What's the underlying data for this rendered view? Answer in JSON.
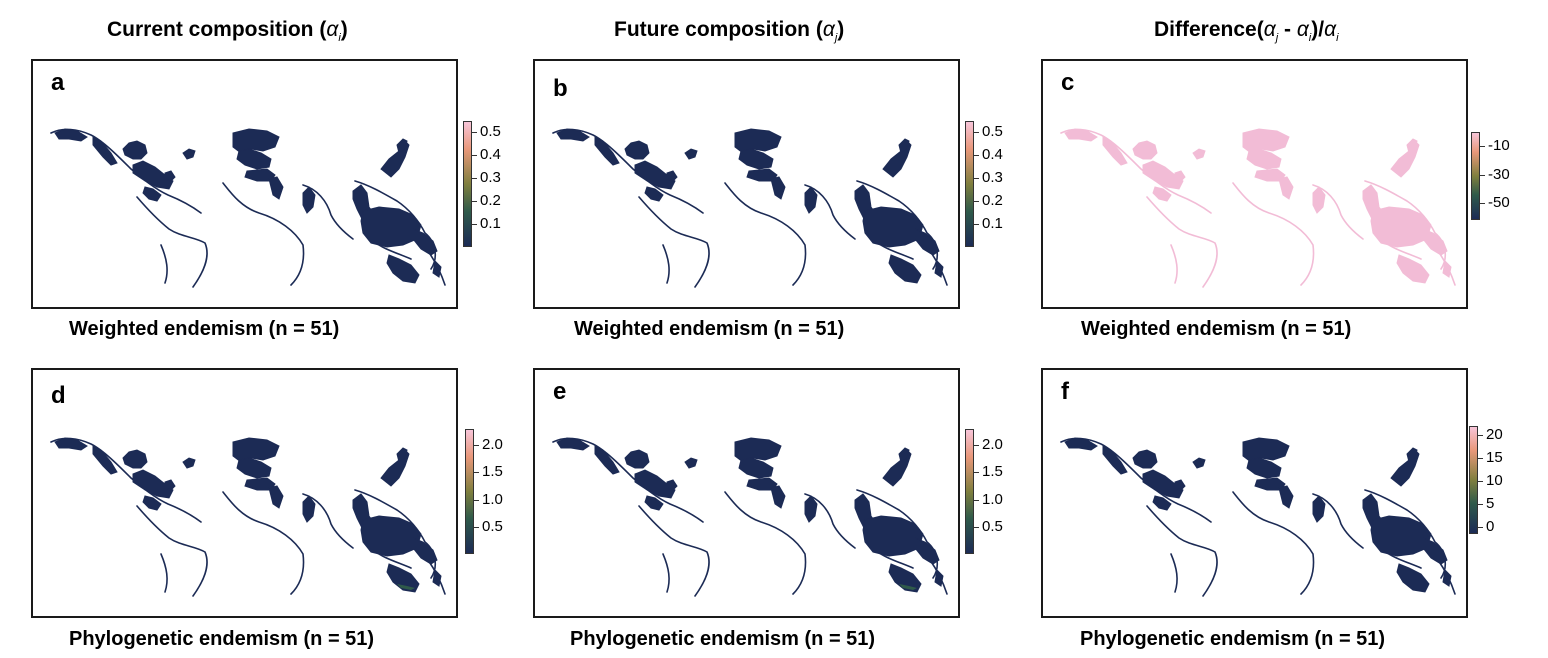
{
  "column_headers": [
    {
      "main": "Current composition (",
      "sym": "α",
      "sub": "i",
      "tail": ")"
    },
    {
      "main": "Future composition (",
      "sym": "α",
      "sub": "j",
      "tail": ")"
    },
    {
      "main": "Difference(",
      "sym": "α",
      "sub": "j",
      "mid": " - ",
      "sym2": "α",
      "sub2": "i",
      "tail": ")/",
      "sym3": "α",
      "sub3": "i"
    }
  ],
  "colors": {
    "ocean_range": "#1c2b55",
    "difference_pink": "#f2bcd6",
    "colorbar_top": "#f7c5d9",
    "colorbar_upper": "#e9987a",
    "colorbar_mid": "#7f7f3e",
    "colorbar_low": "#2f5a4a",
    "colorbar_bottom": "#1c2b55",
    "frame": "#1a1a1a"
  },
  "chart_data": [
    {
      "type": "heatmap",
      "panel": "a",
      "caption": "Weighted endemism (n = 51)",
      "range_color": "ocean_range",
      "legend": {
        "ticks": [
          "0.5",
          "0.4",
          "0.3",
          "0.2",
          "0.1"
        ],
        "values": [
          0.5,
          0.4,
          0.3,
          0.2,
          0.1
        ],
        "min": 0.0,
        "max": 0.55
      }
    },
    {
      "type": "heatmap",
      "panel": "b",
      "caption": "Weighted endemism (n = 51)",
      "range_color": "ocean_range",
      "legend": {
        "ticks": [
          "0.5",
          "0.4",
          "0.3",
          "0.2",
          "0.1"
        ],
        "values": [
          0.5,
          0.4,
          0.3,
          0.2,
          0.1
        ],
        "min": 0.0,
        "max": 0.55
      }
    },
    {
      "type": "heatmap",
      "panel": "c",
      "caption": "Weighted endemism (n = 51)",
      "range_color": "difference_pink",
      "legend": {
        "ticks": [
          "-10",
          "-30",
          "-50"
        ],
        "values": [
          -10,
          -30,
          -50
        ],
        "min": -62,
        "max": 0
      }
    },
    {
      "type": "heatmap",
      "panel": "d",
      "caption": "Phylogenetic endemism (n = 51)",
      "range_color": "ocean_range",
      "legend": {
        "ticks": [
          "2.0",
          "1.5",
          "1.0",
          "0.5"
        ],
        "values": [
          2.0,
          1.5,
          1.0,
          0.5
        ],
        "min": 0.0,
        "max": 2.3
      }
    },
    {
      "type": "heatmap",
      "panel": "e",
      "caption": "Phylogenetic endemism (n = 51)",
      "range_color": "ocean_range",
      "legend": {
        "ticks": [
          "2.0",
          "1.5",
          "1.0",
          "0.5"
        ],
        "values": [
          2.0,
          1.5,
          1.0,
          0.5
        ],
        "min": 0.0,
        "max": 2.3
      }
    },
    {
      "type": "heatmap",
      "panel": "f",
      "caption": "Phylogenetic endemism (n = 51)",
      "range_color": "ocean_range",
      "legend": {
        "ticks": [
          "20",
          "15",
          "10",
          "5",
          "0"
        ],
        "values": [
          20,
          15,
          10,
          5,
          0
        ],
        "min": -1.5,
        "max": 22
      }
    }
  ]
}
